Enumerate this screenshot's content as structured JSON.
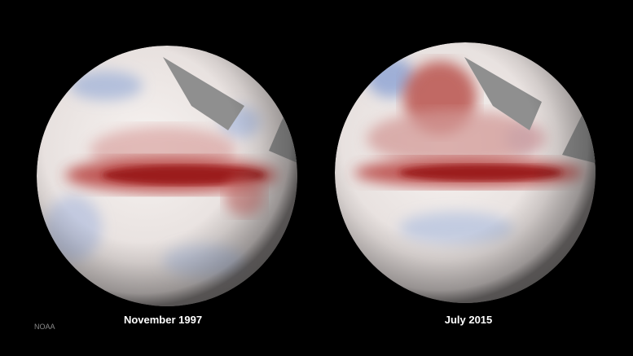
{
  "image": {
    "panels": [
      {
        "label": "November 1997"
      },
      {
        "label": "July 2015"
      }
    ],
    "credit": "NOAA"
  }
}
